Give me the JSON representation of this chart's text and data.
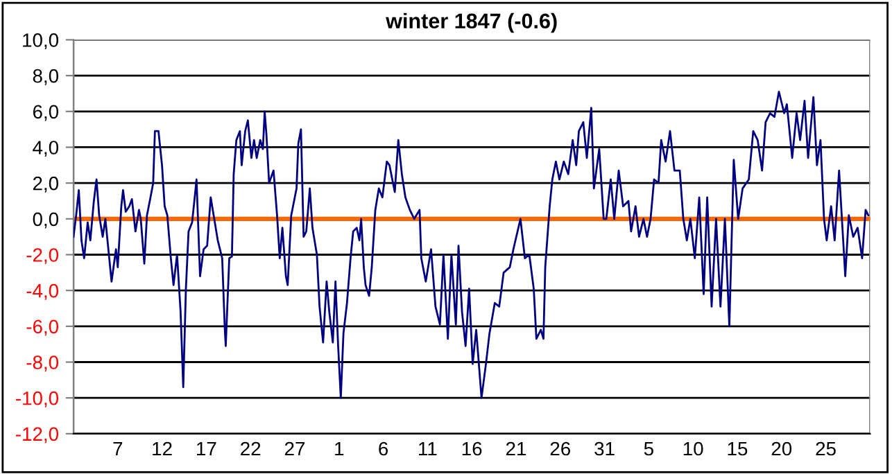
{
  "chart_data": {
    "type": "line",
    "title": "winter 1847 (-0.6)",
    "xlim": [
      "1846-12-02T00:00",
      "1847-03-02T00:00"
    ],
    "xticks": [
      {
        "value": "1846-12-07",
        "label": "7"
      },
      {
        "value": "1846-12-12",
        "label": "12"
      },
      {
        "value": "1846-12-17",
        "label": "17"
      },
      {
        "value": "1846-12-22",
        "label": "22"
      },
      {
        "value": "1846-12-27",
        "label": "27"
      },
      {
        "value": "1847-01-01",
        "label": "1"
      },
      {
        "value": "1847-01-06",
        "label": "6"
      },
      {
        "value": "1847-01-11",
        "label": "11"
      },
      {
        "value": "1847-01-16",
        "label": "16"
      },
      {
        "value": "1847-01-21",
        "label": "21"
      },
      {
        "value": "1847-01-26",
        "label": "26"
      },
      {
        "value": "1847-01-31",
        "label": "31"
      },
      {
        "value": "1847-02-05",
        "label": "5"
      },
      {
        "value": "1847-02-10",
        "label": "10"
      },
      {
        "value": "1847-02-15",
        "label": "15"
      },
      {
        "value": "1847-02-20",
        "label": "20"
      },
      {
        "value": "1847-02-25",
        "label": "25"
      }
    ],
    "ylim": [
      -12,
      10
    ],
    "yticks": [
      {
        "value": -12,
        "label": "-12,0"
      },
      {
        "value": -10,
        "label": "-10,0"
      },
      {
        "value": -8,
        "label": "-8,0"
      },
      {
        "value": -6,
        "label": "-6,0"
      },
      {
        "value": -4,
        "label": "-4,0"
      },
      {
        "value": -2,
        "label": "-2,0"
      },
      {
        "value": 0,
        "label": "0,0"
      },
      {
        "value": 2,
        "label": "2,0"
      },
      {
        "value": 4,
        "label": "4,0"
      },
      {
        "value": 6,
        "label": "6,0"
      },
      {
        "value": 8,
        "label": "8,0"
      },
      {
        "value": 10,
        "label": "10,0"
      }
    ],
    "grid": "y",
    "ref_lines": [
      {
        "axis": "y",
        "value": 0,
        "label": null,
        "color": "#ff6600"
      }
    ],
    "series": [
      {
        "color": "#000080",
        "x": [
          "1846-12-02T00:00",
          "1846-12-02T07:12",
          "1846-12-02T14:24",
          "1846-12-02T21:36",
          "1846-12-03T04:48",
          "1846-12-03T14:24",
          "1846-12-03T21:36",
          "1846-12-04T07:12",
          "1846-12-04T14:24",
          "1846-12-04T21:36",
          "1846-12-05T07:12",
          "1846-12-05T14:24",
          "1846-12-06T00:00",
          "1846-12-06T07:12",
          "1846-12-06T19:12",
          "1846-12-07T00:00",
          "1846-12-07T09:36",
          "1846-12-07T14:24",
          "1846-12-07T21:36",
          "1846-12-08T07:12",
          "1846-12-08T14:24",
          "1846-12-09T00:00",
          "1846-12-09T09:36",
          "1846-12-09T14:24",
          "1846-12-10T00:00",
          "1846-12-10T07:12",
          "1846-12-10T16:48",
          "1846-12-11T00:00",
          "1846-12-11T04:48",
          "1846-12-11T14:24",
          "1846-12-12T00:00",
          "1846-12-12T07:12",
          "1846-12-12T14:24",
          "1846-12-13T00:00",
          "1846-12-13T07:12",
          "1846-12-13T16:48",
          "1846-12-14T02:24",
          "1846-12-14T09:36",
          "1846-12-14T16:48",
          "1846-12-15T00:00",
          "1846-12-15T09:36",
          "1846-12-15T19:12",
          "1846-12-15T21:36",
          "1846-12-16T07:12",
          "1846-12-16T16:48",
          "1846-12-17T02:24",
          "1846-12-17T12:00",
          "1846-12-17T21:36",
          "1846-12-18T07:12",
          "1846-12-18T19:12",
          "1846-12-19T02:24",
          "1846-12-19T04:48",
          "1846-12-19T14:24",
          "1846-12-19T21:36",
          "1846-12-20T02:24",
          "1846-12-20T09:36",
          "1846-12-20T19:12",
          "1846-12-21T00:00",
          "1846-12-21T09:36",
          "1846-12-21T16:48",
          "1846-12-22T02:24",
          "1846-12-22T09:36",
          "1846-12-22T16:48",
          "1846-12-23T02:24",
          "1846-12-23T09:36",
          "1846-12-23T14:24",
          "1846-12-23T19:12",
          "1846-12-24T02:24",
          "1846-12-24T14:24",
          "1846-12-25T00:00",
          "1846-12-25T07:12",
          "1846-12-25T14:24",
          "1846-12-26T00:00",
          "1846-12-26T04:48",
          "1846-12-26T14:24",
          "1846-12-27T04:48",
          "1846-12-27T09:36",
          "1846-12-27T16:48",
          "1846-12-28T00:00",
          "1846-12-28T07:12",
          "1846-12-28T16:48",
          "1846-12-29T00:00",
          "1846-12-29T12:00",
          "1846-12-29T19:12",
          "1846-12-30T04:48",
          "1846-12-30T14:24",
          "1846-12-30T21:36",
          "1846-12-31T07:12",
          "1846-12-31T14:24",
          "1846-12-31T21:36",
          "1847-01-01T04:48",
          "1847-01-01T12:00",
          "1847-01-01T21:36",
          "1847-01-02T07:12",
          "1847-01-02T14:24",
          "1847-01-03T00:00",
          "1847-01-03T07:12",
          "1847-01-03T12:00",
          "1847-01-03T19:12",
          "1847-01-04T00:00",
          "1847-01-04T09:36",
          "1847-01-04T16:48",
          "1847-01-05T02:24",
          "1847-01-05T12:00",
          "1847-01-05T21:36",
          "1847-01-06T09:36",
          "1847-01-06T16:48",
          "1847-01-07T02:24",
          "1847-01-07T07:12",
          "1847-01-07T16:48",
          "1847-01-08T02:24",
          "1847-01-08T12:00",
          "1847-01-09T00:00",
          "1847-01-09T12:00",
          "1847-01-10T02:24",
          "1847-01-10T07:12",
          "1847-01-10T19:12",
          "1847-01-11T09:36",
          "1847-01-11T21:36",
          "1847-01-12T09:36",
          "1847-01-12T19:12",
          "1847-01-13T07:12",
          "1847-01-13T16:48",
          "1847-01-14T04:48",
          "1847-01-14T12:00",
          "1847-01-14T21:36",
          "1847-01-15T07:12",
          "1847-01-15T16:48",
          "1847-01-16T02:24",
          "1847-01-16T12:00",
          "1847-01-17T02:24",
          "1847-01-17T14:24",
          "1847-01-18T00:00",
          "1847-01-18T14:24",
          "1847-01-19T02:24",
          "1847-01-19T14:24",
          "1847-01-20T07:12",
          "1847-01-20T16:48",
          "1847-01-21T12:00",
          "1847-01-22T00:00",
          "1847-01-22T12:00",
          "1847-01-23T00:00",
          "1847-01-23T07:12",
          "1847-01-23T19:12",
          "1847-01-24T02:24",
          "1847-01-24T07:12",
          "1847-01-24T19:12",
          "1847-01-25T02:24",
          "1847-01-25T12:00",
          "1847-01-25T21:36",
          "1847-01-26T09:36",
          "1847-01-26T21:36",
          "1847-01-27T09:36",
          "1847-01-27T19:12",
          "1847-01-28T02:24",
          "1847-01-28T14:24",
          "1847-01-29T00:00",
          "1847-01-29T12:00",
          "1847-01-29T19:12",
          "1847-01-30T09:36",
          "1847-01-30T21:36",
          "1847-01-31T04:48",
          "1847-01-31T16:48",
          "1847-02-01T02:24",
          "1847-02-01T14:24",
          "1847-02-02T02:24",
          "1847-02-02T16:48",
          "1847-02-03T00:00",
          "1847-02-03T12:00",
          "1847-02-03T21:36",
          "1847-02-04T09:36",
          "1847-02-04T19:12",
          "1847-02-05T04:48",
          "1847-02-05T14:24",
          "1847-02-06T02:24",
          "1847-02-06T09:36",
          "1847-02-06T21:36",
          "1847-02-07T09:36",
          "1847-02-07T21:36",
          "1847-02-08T12:00",
          "1847-02-08T21:36",
          "1847-02-09T07:12",
          "1847-02-09T16:48",
          "1847-02-10T04:48",
          "1847-02-10T16:48",
          "1847-02-11T04:48",
          "1847-02-11T14:24",
          "1847-02-12T02:24",
          "1847-02-12T14:24",
          "1847-02-13T02:24",
          "1847-02-13T14:24",
          "1847-02-14T02:24",
          "1847-02-14T14:24",
          "1847-02-15T02:24",
          "1847-02-15T14:24",
          "1847-02-16T07:12",
          "1847-02-16T19:12",
          "1847-02-17T07:12",
          "1847-02-17T19:12",
          "1847-02-18T04:48",
          "1847-02-18T16:48",
          "1847-02-19T04:48",
          "1847-02-19T16:48",
          "1847-02-20T07:12",
          "1847-02-20T14:24",
          "1847-02-21T04:48",
          "1847-02-21T16:48",
          "1847-02-22T02:24",
          "1847-02-22T14:24",
          "1847-02-23T00:00",
          "1847-02-23T14:24",
          "1847-02-24T00:00",
          "1847-02-24T09:36",
          "1847-02-24T19:12",
          "1847-02-25T02:24",
          "1847-02-25T14:24",
          "1847-02-26T00:00",
          "1847-02-26T12:00",
          "1847-02-27T04:48",
          "1847-02-27T14:24",
          "1847-02-28T02:24",
          "1847-02-28T14:24",
          "1847-03-01T02:24",
          "1847-03-01T12:00",
          "1847-03-01T19:12"
        ],
        "values": [
          -1.0,
          0.2,
          1.6,
          -1.2,
          -2.2,
          -0.2,
          -1.2,
          1.0,
          2.2,
          0.2,
          -1.0,
          0,
          -2.0,
          -3.5,
          -1.7,
          -2.7,
          0.7,
          1.6,
          0.4,
          0.7,
          1.1,
          -0.7,
          0.5,
          0,
          -2.5,
          0.2,
          1.2,
          2.0,
          4.9,
          4.9,
          3.0,
          0.7,
          0.2,
          -2.2,
          -3.7,
          -2.0,
          -5.2,
          -9.4,
          -3.9,
          -0.7,
          -0.2,
          1.7,
          2.2,
          -3.2,
          -1.7,
          -1.5,
          1.2,
          0,
          -1.2,
          -2.2,
          -6.2,
          -7.1,
          -2.2,
          -2.1,
          2.5,
          4.4,
          4.9,
          3.0,
          4.9,
          5.5,
          3.4,
          4.4,
          3.4,
          4.4,
          3.9,
          6.0,
          4.7,
          2.0,
          2.7,
          0.2,
          -2.2,
          -0.5,
          -3.2,
          -3.7,
          0.2,
          1.7,
          4.2,
          5.0,
          -1.0,
          -0.7,
          1.7,
          -0.5,
          -2.0,
          -4.9,
          -6.9,
          -3.5,
          -5.2,
          -6.9,
          -3.5,
          -7.1,
          -10.0,
          -6.4,
          -4.7,
          -2.2,
          -0.7,
          -0.5,
          -1.2,
          0,
          -2.7,
          -3.7,
          -4.3,
          -2.7,
          0.5,
          1.7,
          1.2,
          3.2,
          3.0,
          2.0,
          1.5,
          4.4,
          2.5,
          1.2,
          0.5,
          0,
          0.5,
          -2.2,
          -3.5,
          -1.7,
          -4.9,
          -5.9,
          -2.0,
          -6.7,
          -2.0,
          -5.9,
          -1.5,
          -5.2,
          -7.1,
          -3.9,
          -8.1,
          -6.2,
          -10.0,
          -8.1,
          -6.4,
          -4.7,
          -4.9,
          -3.0,
          -2.7,
          -1.7,
          0,
          -2.2,
          -2.0,
          -3.9,
          -6.7,
          -6.2,
          -6.7,
          -2.7,
          0.7,
          2.2,
          3.2,
          2.2,
          3.2,
          2.5,
          4.4,
          3.0,
          4.9,
          5.4,
          3.4,
          6.2,
          1.7,
          3.9,
          0,
          0,
          2.2,
          0,
          2.7,
          0.7,
          1.0,
          -0.7,
          0.7,
          -1.0,
          0,
          -1.0,
          0,
          2.2,
          2.0,
          4.4,
          3.2,
          4.9,
          2.7,
          2.7,
          0,
          -1.2,
          0,
          -2.2,
          1.2,
          -4.2,
          1.2,
          -4.9,
          0,
          -4.9,
          0,
          -6.0,
          3.3,
          0,
          1.7,
          2.2,
          4.9,
          4.4,
          2.7,
          5.4,
          5.9,
          5.7,
          7.1,
          5.9,
          6.4,
          3.4,
          5.9,
          4.4,
          6.6,
          3.4,
          6.8,
          3.0,
          4.4,
          0,
          -1.2,
          0.7,
          -1.2,
          2.7,
          -3.2,
          0.2,
          -1.0,
          -0.5,
          -2.2,
          0.5,
          0.2
        ]
      }
    ]
  }
}
